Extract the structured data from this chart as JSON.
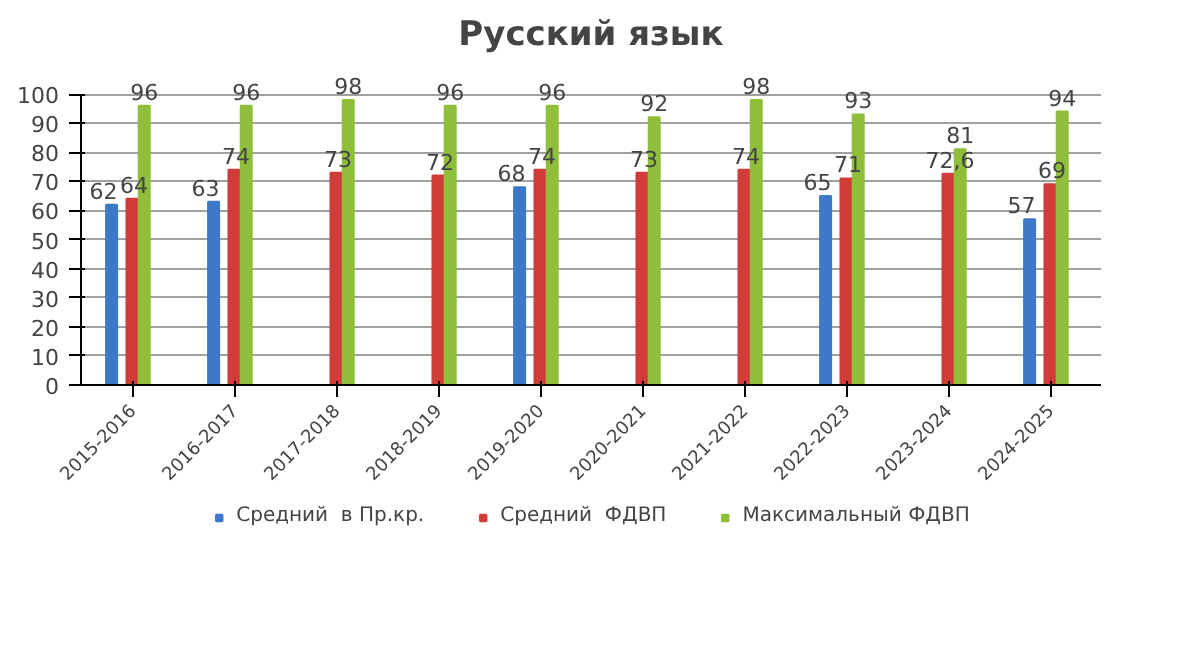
{
  "chart_data": {
    "type": "bar",
    "title": "Русский язык",
    "categories": [
      "2015-2016",
      "2016-2017",
      "2017-2018",
      "2018-2019",
      "2019-2020",
      "2020-2021",
      "2021-2022",
      "2022-2023",
      "2023-2024",
      "2024-2025"
    ],
    "series": [
      {
        "name": "Средний  в Пр.кр.",
        "color": "#3d78c9",
        "values": [
          62,
          63,
          null,
          null,
          68,
          null,
          null,
          65,
          null,
          57
        ]
      },
      {
        "name": "Средний  ФДВП",
        "color": "#d13b38",
        "values": [
          64,
          74,
          73,
          72,
          74,
          73,
          74,
          71,
          72.6,
          69
        ]
      },
      {
        "name": "Максимальный ФДВП",
        "color": "#8fbf3a",
        "values": [
          96,
          96,
          98,
          96,
          96,
          92,
          98,
          93,
          81,
          94
        ]
      }
    ],
    "value_labels": [
      [
        "62",
        "63",
        null,
        null,
        "68",
        null,
        null,
        "65",
        null,
        "57"
      ],
      [
        "64",
        "74",
        "73",
        "72",
        "74",
        "73",
        "74",
        "71",
        "72,6",
        "69"
      ],
      [
        "96",
        "96",
        "98",
        "96",
        "96",
        "92",
        "98",
        "93",
        "81",
        "94"
      ]
    ],
    "ylim": [
      0,
      100
    ],
    "yticks": [
      0,
      10,
      20,
      30,
      40,
      50,
      60,
      70,
      80,
      90,
      100
    ],
    "grid": "y",
    "legend": "bottom"
  }
}
